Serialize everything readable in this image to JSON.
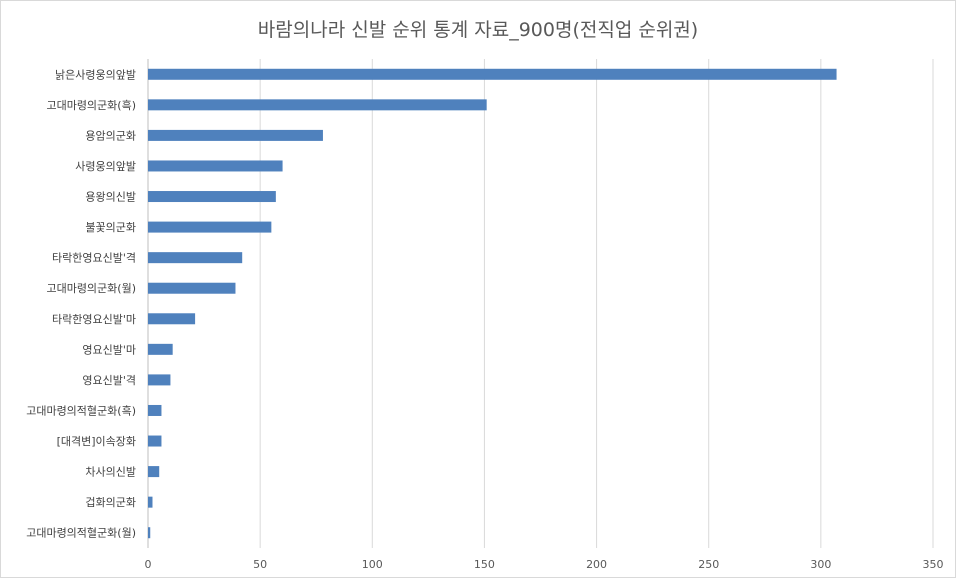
{
  "chart_data": {
    "type": "bar",
    "orientation": "horizontal",
    "title": "바람의나라 신발 순위 통계 자료_900명(전직업 순위권)",
    "categories": [
      "낡은사령웅의앞발",
      "고대마령의군화(흑)",
      "용암의군화",
      "사령웅의앞발",
      "용왕의신발",
      "불꽃의군화",
      "타락한영요신발'격",
      "고대마령의군화(월)",
      "타락한영요신발'마",
      "영요신발'마",
      "영요신발'격",
      "고대마령의적혈군화(흑)",
      "[대격변]이속장화",
      "차사의신발",
      "겁화의군화",
      "고대마령의적혈군화(월)"
    ],
    "values": [
      307,
      151,
      78,
      60,
      57,
      55,
      42,
      39,
      21,
      11,
      10,
      6,
      6,
      5,
      2,
      1
    ],
    "xlim": [
      0,
      350
    ],
    "xticks": [
      0,
      50,
      100,
      150,
      200,
      250,
      300,
      350
    ],
    "grid": "vertical",
    "bar_color": "#4f81bd",
    "grid_color": "#d9d9d9",
    "legend": "none"
  }
}
